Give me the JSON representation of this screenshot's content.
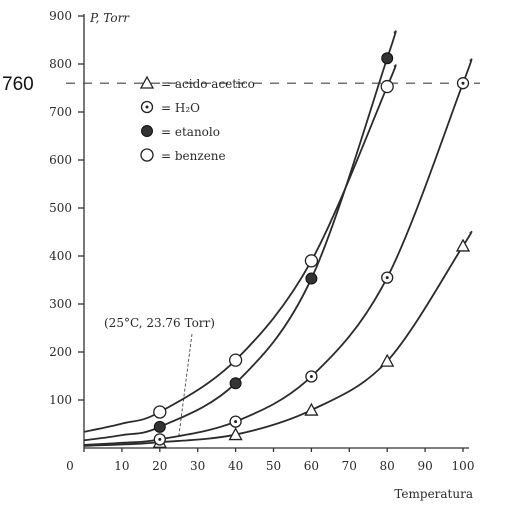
{
  "chart_data": {
    "type": "scatter",
    "title": "",
    "xlabel": "Temperatura",
    "ylabel": "P, Torr",
    "xlim": [
      0,
      100
    ],
    "ylim": [
      0,
      900
    ],
    "x_ticks": [
      "0",
      "10",
      "20",
      "30",
      "40",
      "50",
      "60",
      "70",
      "80",
      "90",
      "100"
    ],
    "y_ticks": [
      "100",
      "200",
      "300",
      "400",
      "500",
      "600",
      "700",
      "800",
      "900"
    ],
    "reference_line": {
      "value": 760,
      "label": "760"
    },
    "annotation": {
      "text": "(25°C, 23.76 Torr)",
      "x": 25,
      "y": 23.76
    },
    "legend_position": "top-left",
    "series": [
      {
        "name": "= acido acetico",
        "marker": "triangle",
        "points": [
          [
            20,
            12
          ],
          [
            40,
            28
          ],
          [
            60,
            79
          ],
          [
            80,
            181
          ],
          [
            100,
            421
          ]
        ]
      },
      {
        "name": "= H₂O",
        "marker": "circle-dot",
        "points": [
          [
            20,
            18
          ],
          [
            40,
            55
          ],
          [
            60,
            149
          ],
          [
            80,
            355
          ],
          [
            100,
            760
          ]
        ]
      },
      {
        "name": "= etanolo",
        "marker": "filled-circle",
        "points": [
          [
            20,
            44
          ],
          [
            40,
            135
          ],
          [
            60,
            353
          ],
          [
            80,
            812
          ]
        ]
      },
      {
        "name": "= benzene",
        "marker": "open-circle",
        "points": [
          [
            20,
            75
          ],
          [
            40,
            183
          ],
          [
            60,
            390
          ],
          [
            80,
            753
          ]
        ]
      }
    ]
  }
}
